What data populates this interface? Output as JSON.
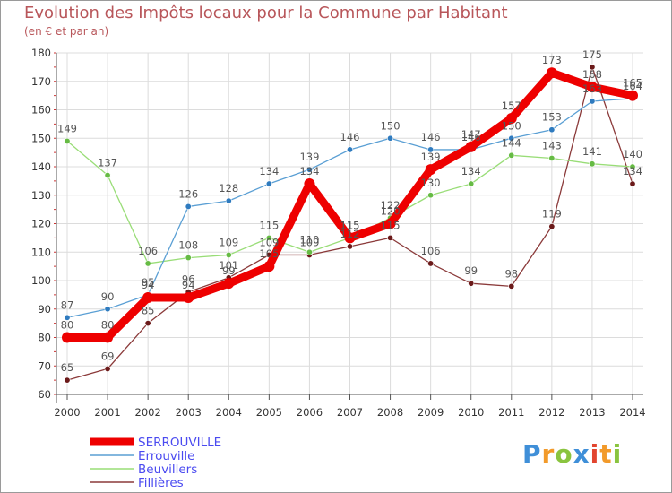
{
  "title": "Evolution des Impôts locaux pour la Commune par Habitant",
  "subtitle": "(en € et par an)",
  "logo": {
    "text": "Proxiti",
    "letter_colors": [
      "#3f8fd8",
      "#f29a2a",
      "#8ac43f",
      "#3f8fd8",
      "#e2452f",
      "#f29a2a",
      "#8ac43f"
    ]
  },
  "chart_data": {
    "type": "line",
    "title": "Evolution des Impôts locaux pour la Commune par Habitant",
    "subtitle": "(en € et par an)",
    "xlabel": "",
    "ylabel": "",
    "categories": [
      "2000",
      "2001",
      "2002",
      "2003",
      "2004",
      "2005",
      "2006",
      "2007",
      "2008",
      "2009",
      "2010",
      "2011",
      "2012",
      "2013",
      "2014"
    ],
    "ylim": [
      60,
      180
    ],
    "yticks": [
      60,
      70,
      80,
      90,
      100,
      110,
      120,
      130,
      140,
      150,
      160,
      170,
      180
    ],
    "grid": true,
    "legend_position": "bottom-left",
    "series": [
      {
        "name": "SERROUVILLE",
        "color": "#ee0000",
        "marker_color": "#ee0000",
        "label_color": "#555555",
        "values": [
          80,
          80,
          94,
          94,
          99,
          105,
          134,
          115,
          120,
          139,
          147,
          157,
          173,
          168,
          165
        ]
      },
      {
        "name": "Errouville",
        "color": "#5a9fd4",
        "marker_color": "#2f7bbf",
        "label_color": "#555555",
        "values": [
          87,
          90,
          95,
          126,
          128,
          134,
          139,
          146,
          150,
          146,
          146,
          150,
          153,
          163,
          164
        ]
      },
      {
        "name": "Beuvillers",
        "color": "#99dd77",
        "marker_color": "#66bb44",
        "label_color": "#555555",
        "values": [
          149,
          137,
          106,
          108,
          109,
          115,
          110,
          115,
          122,
          130,
          134,
          144,
          143,
          141,
          140
        ]
      },
      {
        "name": "Fillières",
        "color": "#8b3a3a",
        "marker_color": "#6b1a1a",
        "label_color": "#555555",
        "values": [
          65,
          69,
          85,
          96,
          101,
          109,
          109,
          112,
          115,
          106,
          99,
          98,
          119,
          175,
          134
        ]
      }
    ]
  }
}
